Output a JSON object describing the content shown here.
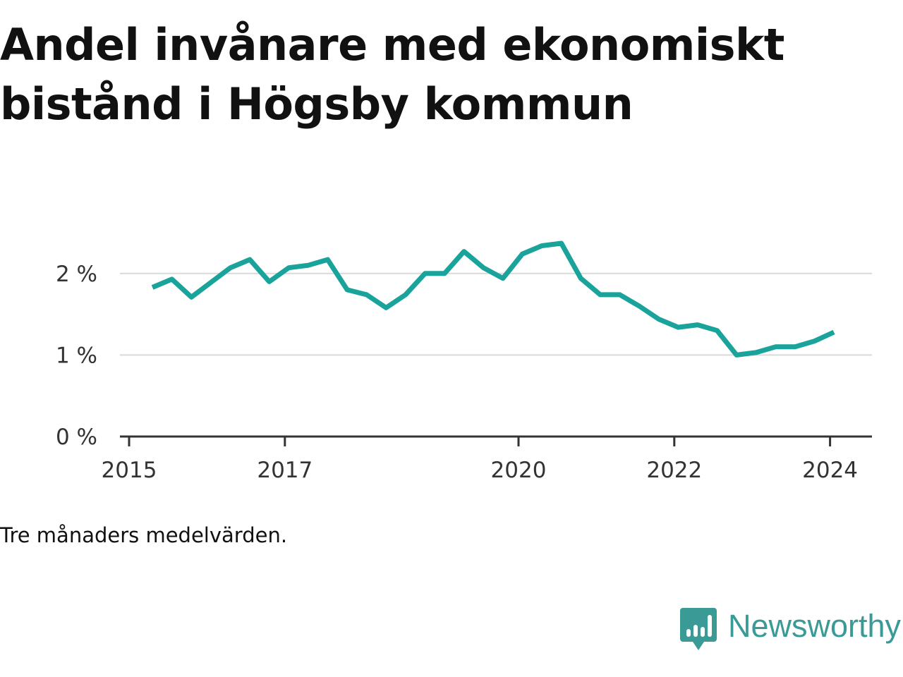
{
  "title": "Andel invånare med ekonomiskt bistånd i Högsby kommun",
  "note": "Tre månaders medelvärden.",
  "brand": {
    "name": "Newsworthy",
    "logo_icon": "newsworthy-logo-icon",
    "color": "#3a9a96"
  },
  "chart_data": {
    "type": "line",
    "title": "Andel invånare med ekonomiskt bistånd i Högsby kommun",
    "xlabel": "",
    "ylabel": "",
    "line_color": "#19a39a",
    "grid": true,
    "ylim": [
      0,
      2.5
    ],
    "yticks": [
      {
        "value": 0,
        "label": "0 %"
      },
      {
        "value": 1,
        "label": "1 %"
      },
      {
        "value": 2,
        "label": "2 %"
      }
    ],
    "xticks": [
      {
        "value": 2015.0,
        "label": "2015"
      },
      {
        "value": 2017.0,
        "label": "2017"
      },
      {
        "value": 2020.0,
        "label": "2020"
      },
      {
        "value": 2022.0,
        "label": "2022"
      },
      {
        "value": 2024.0,
        "label": "2024"
      }
    ],
    "xlim": [
      2014.9,
      2024.5
    ],
    "series": [
      {
        "x": [
          2015.3,
          2015.55,
          2015.8,
          2016.05,
          2016.3,
          2016.55,
          2016.8,
          2017.05,
          2017.3,
          2017.55,
          2017.8,
          2018.05,
          2018.3,
          2018.55,
          2018.8,
          2019.05,
          2019.3,
          2019.55,
          2019.8,
          2020.05,
          2020.3,
          2020.55,
          2020.8,
          2021.05,
          2021.3,
          2021.55,
          2021.8,
          2022.05,
          2022.3,
          2022.55,
          2022.8,
          2023.05,
          2023.3,
          2023.55,
          2023.8,
          2024.05
        ],
        "values": [
          1.83,
          1.93,
          1.71,
          1.89,
          2.07,
          2.17,
          1.9,
          2.07,
          2.1,
          2.17,
          1.8,
          1.74,
          1.58,
          1.74,
          2.0,
          2.0,
          2.27,
          2.07,
          1.94,
          2.24,
          2.34,
          2.37,
          1.94,
          1.74,
          1.74,
          1.6,
          1.44,
          1.34,
          1.37,
          1.3,
          1.0,
          1.03,
          1.1,
          1.1,
          1.17,
          1.28
        ]
      }
    ]
  }
}
